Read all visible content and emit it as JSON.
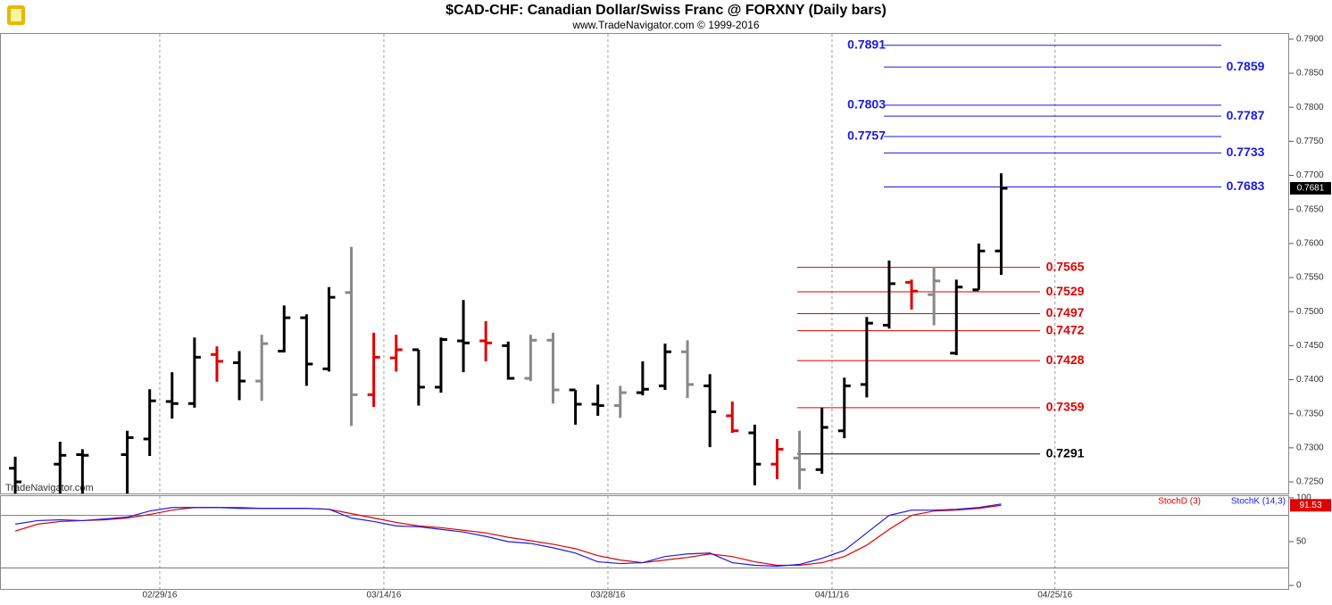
{
  "chart_data": [
    {
      "type": "ohlc",
      "title": "$CAD-CHF:  Canadian Dollar/Swiss Franc @ FORXNY  (Daily bars)",
      "subtitle": "www.TradeNavigator.com © 1999-2016",
      "watermark": "TradeNavigator.com",
      "x": [
        0,
        2,
        3,
        5,
        6,
        7,
        8,
        9,
        10,
        11,
        12,
        13,
        14,
        15,
        16,
        17,
        18,
        19,
        20,
        21,
        22,
        23,
        24,
        25,
        26,
        27,
        28,
        29,
        30,
        31,
        32,
        33,
        34,
        35,
        36,
        37,
        38,
        39,
        40,
        41,
        42,
        43,
        44
      ],
      "open": [
        0.727,
        0.7276,
        0.729,
        0.729,
        0.7313,
        0.7368,
        0.7365,
        0.7437,
        0.7425,
        0.7398,
        0.7442,
        0.7491,
        0.7416,
        0.7528,
        0.7378,
        0.7432,
        0.7444,
        0.7389,
        0.7457,
        0.7457,
        0.745,
        0.7402,
        0.7458,
        0.7385,
        0.7364,
        0.7362,
        0.7381,
        0.7391,
        0.7441,
        0.7391,
        0.7347,
        0.7322,
        0.7276,
        0.7285,
        0.7268,
        0.7325,
        0.7393,
        0.748,
        0.7543,
        0.7525,
        0.7439,
        0.7532,
        0.7589
      ],
      "high": [
        0.7287,
        0.7309,
        0.7298,
        0.7325,
        0.7386,
        0.7411,
        0.7462,
        0.7449,
        0.7442,
        0.7466,
        0.7509,
        0.7496,
        0.7536,
        0.7595,
        0.7469,
        0.7466,
        0.7444,
        0.7462,
        0.7517,
        0.7486,
        0.7456,
        0.7466,
        0.7469,
        0.7385,
        0.7393,
        0.7391,
        0.7427,
        0.7453,
        0.7458,
        0.7408,
        0.7368,
        0.7334,
        0.7313,
        0.7325,
        0.7359,
        0.7403,
        0.7492,
        0.7575,
        0.7547,
        0.7566,
        0.7547,
        0.76,
        0.7703
      ],
      "low": [
        0.7233,
        0.7233,
        0.7233,
        0.7233,
        0.7288,
        0.7343,
        0.7359,
        0.7397,
        0.737,
        0.7369,
        0.744,
        0.7391,
        0.7412,
        0.7332,
        0.736,
        0.7412,
        0.7362,
        0.7381,
        0.7411,
        0.7427,
        0.74,
        0.7398,
        0.7365,
        0.7334,
        0.7347,
        0.7344,
        0.7377,
        0.7385,
        0.7373,
        0.7301,
        0.7322,
        0.7245,
        0.7254,
        0.7239,
        0.7262,
        0.7314,
        0.7374,
        0.7475,
        0.7503,
        0.748,
        0.7436,
        0.7532,
        0.7554
      ],
      "close": [
        0.725,
        0.7289,
        0.7289,
        0.7315,
        0.7369,
        0.7365,
        0.7433,
        0.7427,
        0.7398,
        0.7453,
        0.7491,
        0.7423,
        0.7521,
        0.7378,
        0.7433,
        0.7444,
        0.7389,
        0.7459,
        0.7454,
        0.7454,
        0.7402,
        0.7458,
        0.7385,
        0.7364,
        0.7362,
        0.7381,
        0.7386,
        0.7441,
        0.7393,
        0.7353,
        0.7325,
        0.7276,
        0.7298,
        0.7268,
        0.733,
        0.7391,
        0.7483,
        0.7541,
        0.753,
        0.7545,
        0.7536,
        0.7589,
        0.7681
      ],
      "colors": [
        "#000",
        "#000",
        "#000",
        "#000",
        "#000",
        "#000",
        "#000",
        "#e00000",
        "#000",
        "#888",
        "#000",
        "#000",
        "#000",
        "#888",
        "#e00000",
        "#e00000",
        "#000",
        "#000",
        "#000",
        "#e00000",
        "#000",
        "#888",
        "#888",
        "#000",
        "#000",
        "#888",
        "#000",
        "#000",
        "#888",
        "#000",
        "#e00000",
        "#000",
        "#e00000",
        "#888",
        "#000",
        "#000",
        "#000",
        "#000",
        "#e00000",
        "#888",
        "#000",
        "#000",
        "#000"
      ],
      "levels": [
        {
          "color": "#1a1ae6",
          "values": [
            0.7891,
            0.7859,
            0.7803,
            0.7787,
            0.7757,
            0.7733,
            0.7683
          ]
        },
        {
          "color": "#e00000",
          "values": [
            0.7565,
            0.7529,
            0.7497,
            0.7472,
            0.7428,
            0.7359
          ]
        },
        {
          "color": "#000",
          "values": [
            0.7291
          ]
        }
      ],
      "xlim": [
        -0.68,
        56.85
      ],
      "ylim": [
        0.7233,
        0.7909
      ],
      "yticks": [
        {
          "value": 0.725,
          "label": "0.7250"
        },
        {
          "value": 0.73,
          "label": "0.7300"
        },
        {
          "value": 0.735,
          "label": "0.7350"
        },
        {
          "value": 0.74,
          "label": "0.7400"
        },
        {
          "value": 0.745,
          "label": "0.7450"
        },
        {
          "value": 0.75,
          "label": "0.7500"
        },
        {
          "value": 0.755,
          "label": "0.7550"
        },
        {
          "value": 0.76,
          "label": "0.7600"
        },
        {
          "value": 0.765,
          "label": "0.7650"
        },
        {
          "value": 0.77,
          "label": "0.7700"
        },
        {
          "value": 0.775,
          "label": "0.7750"
        },
        {
          "value": 0.78,
          "label": "0.7800"
        },
        {
          "value": 0.785,
          "label": "0.7850"
        },
        {
          "value": 0.79,
          "label": "0.7900"
        }
      ],
      "xticks": [
        {
          "value": 6.45,
          "label": "02/29/16"
        },
        {
          "value": 16.45,
          "label": "03/14/16"
        },
        {
          "value": 26.45,
          "label": "03/28/16"
        },
        {
          "value": 36.45,
          "label": "04/11/16"
        },
        {
          "value": 46.4,
          "label": "04/25/16"
        }
      ]
    },
    {
      "type": "line",
      "x": [
        0,
        1,
        2,
        3,
        4,
        5,
        6,
        7,
        8,
        9,
        10,
        11,
        12,
        13,
        14,
        15,
        16,
        17,
        18,
        19,
        20,
        21,
        22,
        23,
        24,
        25,
        26,
        27,
        28,
        29,
        30,
        31,
        32,
        33,
        34,
        35,
        36,
        37,
        38,
        39,
        40,
        41,
        42,
        43,
        44
      ],
      "series": [
        {
          "name": "StochD (3)",
          "color": "#e00000",
          "values": [
            62,
            70,
            73,
            74,
            75,
            77,
            81,
            86,
            89,
            89,
            89,
            88,
            88,
            88,
            87,
            82,
            77,
            72,
            68,
            66,
            63,
            60,
            55,
            51,
            47,
            42,
            34,
            29,
            26,
            29,
            32,
            36,
            33,
            27,
            23,
            23,
            26,
            33,
            46,
            64,
            80,
            85,
            86,
            88,
            91.53
          ]
        },
        {
          "name": "StochK (14,3)",
          "color": "#1a1ae6",
          "values": [
            70,
            74,
            75,
            74,
            76,
            78,
            85,
            89,
            89,
            89,
            88,
            88,
            88,
            88,
            87,
            77,
            73,
            68,
            67,
            64,
            61,
            56,
            50,
            48,
            43,
            37,
            27,
            25,
            26,
            33,
            36,
            37,
            26,
            23,
            22,
            24,
            31,
            40,
            60,
            80,
            86,
            86,
            87,
            89,
            93
          ]
        }
      ],
      "ylim": [
        -4,
        103
      ],
      "yticks": [
        0,
        50,
        100
      ],
      "ref_lines": [
        20,
        80
      ]
    }
  ]
}
